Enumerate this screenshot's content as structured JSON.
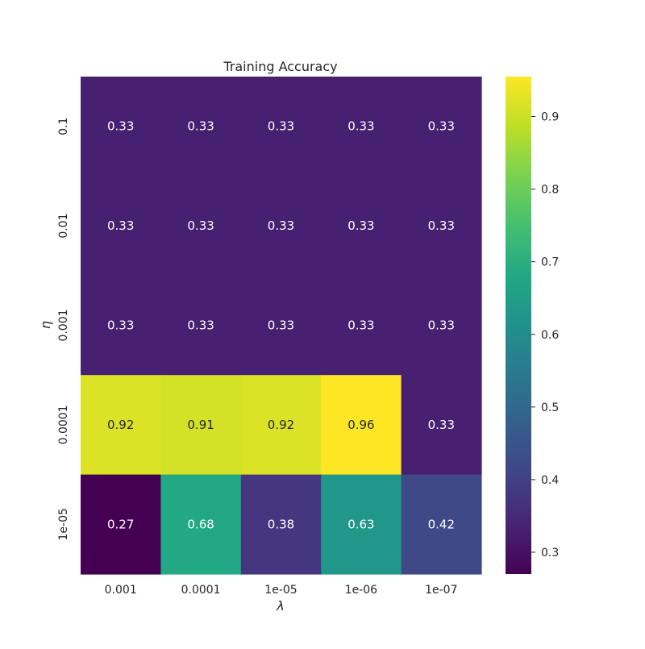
{
  "chart_data": {
    "type": "heatmap",
    "title": "Training Accuracy",
    "xlabel": "λ",
    "ylabel": "η",
    "x_categories": [
      "0.001",
      "0.0001",
      "1e-05",
      "1e-06",
      "1e-07"
    ],
    "y_categories": [
      "0.1",
      "0.01",
      "0.001",
      "0.0001",
      "1e-05"
    ],
    "values": [
      [
        0.33,
        0.33,
        0.33,
        0.33,
        0.33
      ],
      [
        0.33,
        0.33,
        0.33,
        0.33,
        0.33
      ],
      [
        0.33,
        0.33,
        0.33,
        0.33,
        0.33
      ],
      [
        0.92,
        0.91,
        0.92,
        0.96,
        0.33
      ],
      [
        0.27,
        0.68,
        0.38,
        0.63,
        0.42
      ]
    ],
    "labels": [
      [
        "0.33",
        "0.33",
        "0.33",
        "0.33",
        "0.33"
      ],
      [
        "0.33",
        "0.33",
        "0.33",
        "0.33",
        "0.33"
      ],
      [
        "0.33",
        "0.33",
        "0.33",
        "0.33",
        "0.33"
      ],
      [
        "0.92",
        "0.91",
        "0.92",
        "0.96",
        "0.33"
      ],
      [
        "0.27",
        "0.68",
        "0.38",
        "0.63",
        "0.42"
      ]
    ],
    "colormap": "viridis",
    "colorbar": {
      "vmin": 0.27,
      "vmax": 0.955,
      "ticks": [
        0.3,
        0.4,
        0.5,
        0.6,
        0.7,
        0.8,
        0.9
      ],
      "tick_labels": [
        "0.3",
        "0.4",
        "0.5",
        "0.6",
        "0.7",
        "0.8",
        "0.9"
      ]
    },
    "grid": false,
    "legend": "colorbar-right"
  }
}
